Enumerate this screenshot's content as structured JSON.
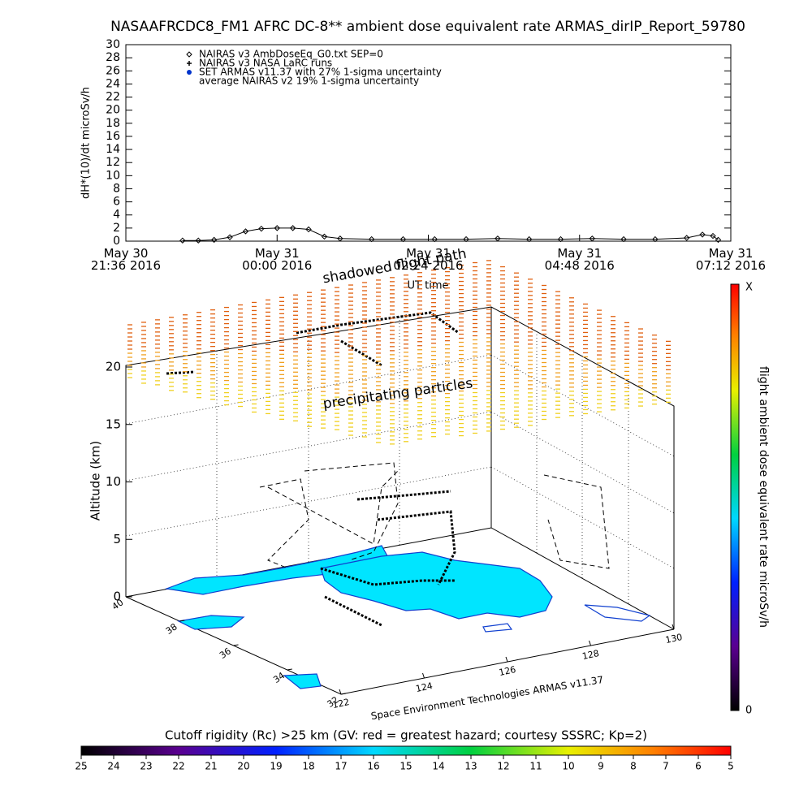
{
  "chart_data": [
    {
      "type": "line",
      "title": "NASAAFRCDC8_FM1 AFRC DC-8** ambient dose equivalent rate ARMAS_dirIP_Report_59780",
      "ylabel": "dH*(10)/dt microSv/h",
      "xlabel": "UT time",
      "xlim": [
        "2016-05-30 21:36",
        "2016-05-31 07:12"
      ],
      "xticks": [
        {
          "value": "2016-05-30 21:36",
          "label": "May 30\n21:36 2016"
        },
        {
          "value": "2016-05-31 00:00",
          "label": "May 31\n00:00 2016"
        },
        {
          "value": "2016-05-31 02:24",
          "label": "May 31\n02:24 2016"
        },
        {
          "value": "2016-05-31 04:48",
          "label": "May 31\n04:48 2016"
        },
        {
          "value": "2016-05-31 07:12",
          "label": "May 31\n07:12 2016"
        }
      ],
      "ylim": [
        0,
        30
      ],
      "yticks": [
        0,
        2,
        4,
        6,
        8,
        10,
        12,
        14,
        16,
        18,
        20,
        22,
        24,
        26,
        28,
        30
      ],
      "x": [
        "2016-05-30 22:30",
        "2016-05-30 22:45",
        "2016-05-30 23:00",
        "2016-05-30 23:15",
        "2016-05-30 23:30",
        "2016-05-30 23:45",
        "2016-05-31 00:00",
        "2016-05-31 00:15",
        "2016-05-31 00:30",
        "2016-05-31 00:45",
        "2016-05-31 01:00",
        "2016-05-31 01:30",
        "2016-05-31 02:00",
        "2016-05-31 02:30",
        "2016-05-31 03:00",
        "2016-05-31 03:30",
        "2016-05-31 04:00",
        "2016-05-31 04:30",
        "2016-05-31 05:00",
        "2016-05-31 05:30",
        "2016-05-31 06:00",
        "2016-05-31 06:30",
        "2016-05-31 06:45",
        "2016-05-31 06:55",
        "2016-05-31 07:00"
      ],
      "series": [
        {
          "name": "NAIRAS v3 AmbDoseEq_G0.txt SEP=0",
          "color": "#000000",
          "marker": "diamond",
          "values": [
            0.1,
            0.1,
            0.2,
            0.6,
            1.5,
            1.9,
            2.0,
            2.0,
            1.8,
            0.7,
            0.4,
            0.3,
            0.3,
            0.3,
            0.3,
            0.4,
            0.3,
            0.3,
            0.4,
            0.3,
            0.3,
            0.5,
            1.0,
            0.8,
            0.2
          ]
        }
      ],
      "other_legend_entries": [
        {
          "label": "NAIRAS v3 NASA LaRC runs",
          "marker": "plus",
          "color": "#000000"
        },
        {
          "label": "SET ARMAS v11.37 with 27% 1-sigma uncertainty",
          "marker": "dot",
          "color": "#0033cc"
        },
        {
          "label": "average NAIRAS v2 19% 1-sigma uncertainty",
          "marker": "none",
          "color": "#000000"
        }
      ]
    },
    {
      "type": "scene3d",
      "zlabel": "Altitude (km)",
      "zlim": [
        0,
        20
      ],
      "zticks": [
        0,
        5,
        10,
        15,
        20
      ],
      "ylim": [
        32,
        40
      ],
      "yticks": [
        40,
        38,
        36,
        34,
        32
      ],
      "xlim": [
        122,
        130
      ],
      "xticks": [
        122,
        124,
        126,
        128,
        130
      ],
      "annotations": [
        "shadowed flight path",
        "precipitating particles"
      ],
      "credit": "Space Environment Technologies ARMAS v11.37"
    },
    {
      "type": "colorbar",
      "orientation": "vertical",
      "label": "flight ambient dose equivalent rate microSv/h",
      "top_label": "X",
      "bottom_label": "0"
    },
    {
      "type": "colorbar",
      "orientation": "horizontal",
      "label": "Cutoff rigidity (Rc) >25 km (GV: red = greatest hazard; courtesy SSSRC; Kp=2)",
      "lim": [
        25,
        5
      ],
      "ticks": [
        25,
        24,
        23,
        22,
        21,
        20,
        19,
        18,
        17,
        16,
        15,
        14,
        13,
        12,
        11,
        10,
        9,
        8,
        7,
        6,
        5
      ]
    }
  ]
}
